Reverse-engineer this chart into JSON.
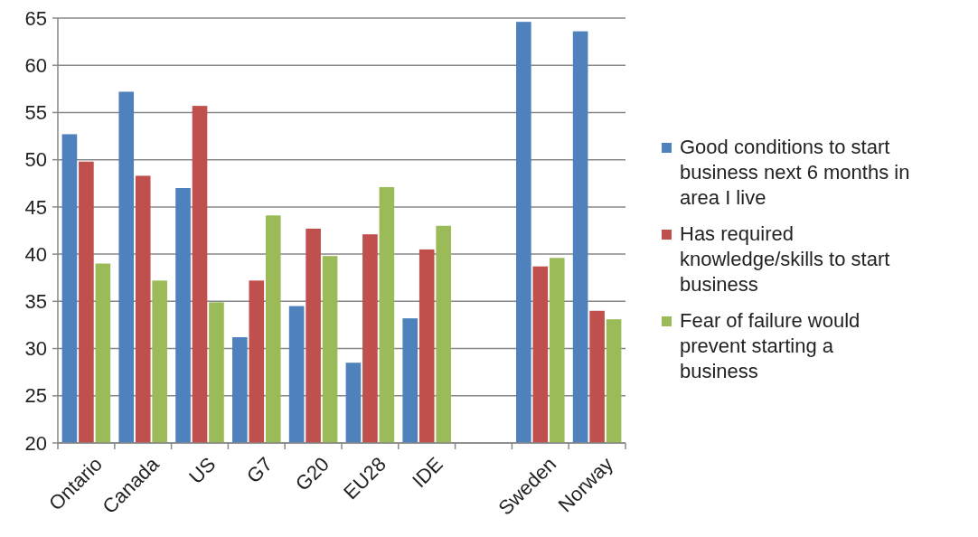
{
  "chart_data": {
    "type": "bar",
    "categories": [
      "Ontario",
      "Canada",
      "US",
      "G7",
      "G20",
      "EU28",
      "IDE",
      null,
      "Sweden",
      "Norway"
    ],
    "series": [
      {
        "name": "Good conditions to start business next 6 months in area I live",
        "color": "#4f81bd",
        "values": [
          52.7,
          57.2,
          47.0,
          31.2,
          34.5,
          28.5,
          33.2,
          null,
          64.6,
          63.6
        ]
      },
      {
        "name": "Has required knowledge/skills to start business",
        "color": "#c0504d",
        "values": [
          49.8,
          48.3,
          55.7,
          37.2,
          42.7,
          42.1,
          40.5,
          null,
          38.7,
          34.0
        ]
      },
      {
        "name": "Fear of failure would prevent starting a business",
        "color": "#9bbb59",
        "values": [
          39.0,
          37.2,
          34.9,
          44.1,
          39.8,
          47.1,
          43.0,
          null,
          39.6,
          33.1
        ]
      }
    ],
    "ylim": [
      20,
      65
    ],
    "yticks": [
      20,
      25,
      30,
      35,
      40,
      45,
      50,
      55,
      60,
      65
    ],
    "grid": "y",
    "legend": "right"
  }
}
